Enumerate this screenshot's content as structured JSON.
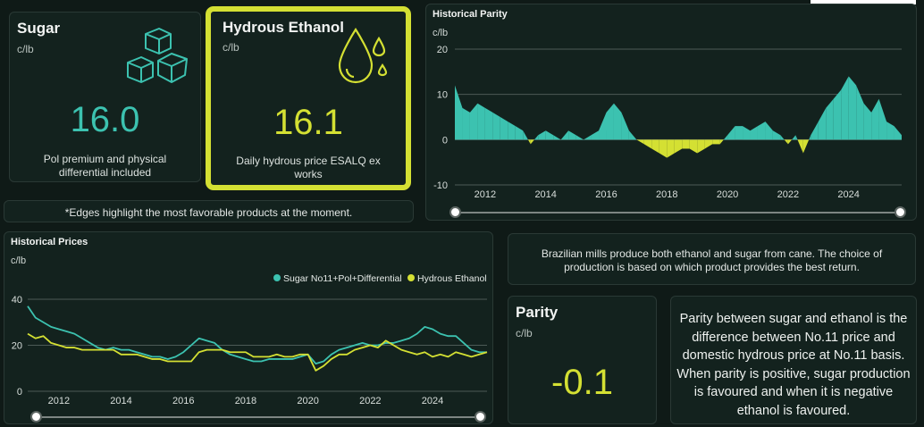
{
  "colors": {
    "sugar": "#3cc2b0",
    "ethanol": "#d4e033",
    "highlight": "#d4e033"
  },
  "sugar_card": {
    "title": "Sugar",
    "unit": "c/lb",
    "value": "16.0",
    "description": "Pol premium and physical differential included",
    "icon": "sugar-cubes-icon"
  },
  "ethanol_card": {
    "title": "Hydrous Ethanol",
    "unit": "c/lb",
    "value": "16.1",
    "description": "Daily hydrous price ESALQ ex works",
    "icon": "ethanol-drop-icon"
  },
  "edges_note": "*Edges highlight the most favorable products at the moment.",
  "info_text": "Brazilian mills produce both ethanol and sugar from cane. The choice of production is based on which product provides the best return.",
  "parity_card": {
    "title": "Parity",
    "unit": "c/lb",
    "value": "-0.1"
  },
  "parity_explanation": "Parity between sugar and ethanol is the difference between No.11 price and domestic hydrous price at No.11 basis. When parity is positive, sugar production is favoured and when it is negative ethanol is favoured.",
  "chart_data": [
    {
      "type": "area",
      "title": "Historical Parity",
      "ylabel": "c/lb",
      "ylim": [
        -10,
        20
      ],
      "yticks": [
        -10,
        0,
        10,
        20
      ],
      "xticks": [
        "2012",
        "2014",
        "2016",
        "2018",
        "2020",
        "2022",
        "2024"
      ],
      "grid": true,
      "positive_color": "#3cc2b0",
      "negative_color": "#d4e033",
      "series": [
        {
          "x": [
            2011.0,
            2011.25,
            2011.5,
            2011.75,
            2012.0,
            2012.25,
            2012.5,
            2012.75,
            2013.0,
            2013.25,
            2013.5,
            2013.75,
            2014.0,
            2014.25,
            2014.5,
            2014.75,
            2015.0,
            2015.25,
            2015.5,
            2015.75,
            2016.0,
            2016.25,
            2016.5,
            2016.75,
            2017.0,
            2017.25,
            2017.5,
            2017.75,
            2018.0,
            2018.25,
            2018.5,
            2018.75,
            2019.0,
            2019.25,
            2019.5,
            2019.75,
            2020.0,
            2020.25,
            2020.5,
            2020.75,
            2021.0,
            2021.25,
            2021.5,
            2021.75,
            2022.0,
            2022.25,
            2022.5,
            2022.75,
            2023.0,
            2023.25,
            2023.5,
            2023.75,
            2024.0,
            2024.25,
            2024.5,
            2024.75,
            2025.0,
            2025.25,
            2025.5,
            2025.75
          ],
          "values": [
            12,
            7,
            6,
            8,
            7,
            6,
            5,
            4,
            3,
            2,
            -1,
            1,
            2,
            1,
            0,
            2,
            1,
            0,
            1,
            2,
            6,
            8,
            6,
            2,
            0,
            -1,
            -2,
            -3,
            -4,
            -3,
            -2,
            -2,
            -3,
            -2,
            -1,
            -1,
            1,
            3,
            3,
            2,
            3,
            4,
            2,
            1,
            -1,
            1,
            -3,
            1,
            4,
            7,
            9,
            11,
            14,
            12,
            8,
            6,
            9,
            4,
            3,
            1
          ]
        }
      ]
    },
    {
      "type": "line",
      "title": "Historical Prices",
      "ylabel": "c/lb",
      "ylim": [
        0,
        40
      ],
      "yticks": [
        0,
        20,
        40
      ],
      "xticks": [
        "2012",
        "2014",
        "2016",
        "2018",
        "2020",
        "2022",
        "2024"
      ],
      "grid": true,
      "legend": "top-right",
      "x": [
        2011.0,
        2011.25,
        2011.5,
        2011.75,
        2012.0,
        2012.25,
        2012.5,
        2012.75,
        2013.0,
        2013.25,
        2013.5,
        2013.75,
        2014.0,
        2014.25,
        2014.5,
        2014.75,
        2015.0,
        2015.25,
        2015.5,
        2015.75,
        2016.0,
        2016.25,
        2016.5,
        2016.75,
        2017.0,
        2017.25,
        2017.5,
        2017.75,
        2018.0,
        2018.25,
        2018.5,
        2018.75,
        2019.0,
        2019.25,
        2019.5,
        2019.75,
        2020.0,
        2020.25,
        2020.5,
        2020.75,
        2021.0,
        2021.25,
        2021.5,
        2021.75,
        2022.0,
        2022.25,
        2022.5,
        2022.75,
        2023.0,
        2023.25,
        2023.5,
        2023.75,
        2024.0,
        2024.25,
        2024.5,
        2024.75,
        2025.0,
        2025.25,
        2025.5,
        2025.75
      ],
      "series": [
        {
          "name": "Sugar No11+Pol+Differential",
          "color": "#3cc2b0",
          "values": [
            37,
            32,
            30,
            28,
            27,
            26,
            25,
            23,
            21,
            19,
            18,
            19,
            18,
            18,
            17,
            16,
            15,
            15,
            14,
            15,
            17,
            20,
            23,
            22,
            21,
            18,
            16,
            15,
            14,
            13,
            13,
            14,
            14,
            14,
            14,
            15,
            16,
            12,
            13,
            16,
            18,
            19,
            20,
            21,
            20,
            20,
            21,
            21,
            22,
            23,
            25,
            28,
            27,
            25,
            24,
            24,
            21,
            18,
            17,
            17
          ]
        },
        {
          "name": "Hydrous Ethanol",
          "color": "#d4e033",
          "values": [
            25,
            23,
            24,
            21,
            20,
            19,
            19,
            18,
            18,
            18,
            18,
            18,
            16,
            16,
            16,
            15,
            14,
            14,
            13,
            13,
            13,
            13,
            17,
            18,
            18,
            18,
            17,
            17,
            17,
            15,
            15,
            15,
            16,
            15,
            15,
            16,
            16,
            9,
            11,
            14,
            16,
            16,
            18,
            19,
            20,
            19,
            22,
            20,
            18,
            17,
            16,
            17,
            15,
            16,
            15,
            17,
            16,
            15,
            16,
            17
          ]
        }
      ]
    }
  ]
}
